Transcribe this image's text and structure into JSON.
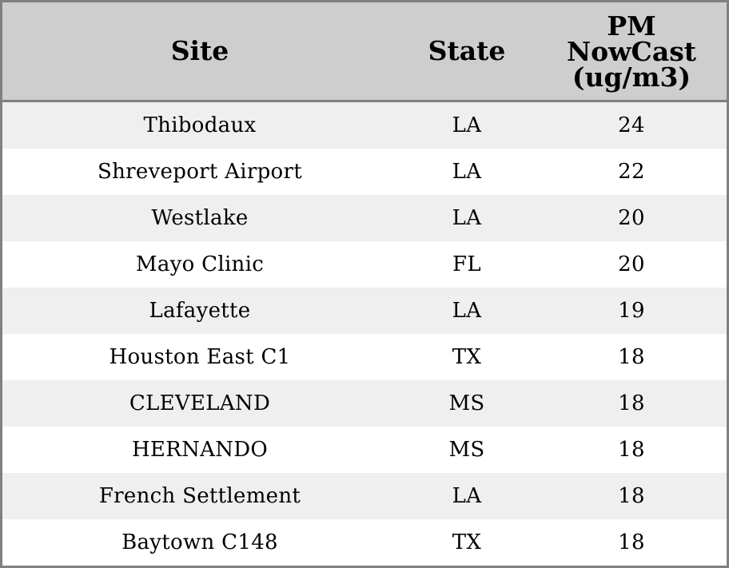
{
  "chart_data": {
    "type": "table",
    "columns": [
      "Site",
      "State",
      "PM\nNowCast\n(ug/m3)"
    ],
    "rows": [
      [
        "Thibodaux",
        "LA",
        "24"
      ],
      [
        "Shreveport Airport",
        "LA",
        "22"
      ],
      [
        "Westlake",
        "LA",
        "20"
      ],
      [
        "Mayo Clinic",
        "FL",
        "20"
      ],
      [
        "Lafayette",
        "LA",
        "19"
      ],
      [
        "Houston East C1",
        "TX",
        "18"
      ],
      [
        "CLEVELAND",
        "MS",
        "18"
      ],
      [
        "HERNANDO",
        "MS",
        "18"
      ],
      [
        "French Settlement",
        "LA",
        "18"
      ],
      [
        "Baytown C148",
        "TX",
        "18"
      ]
    ]
  },
  "colors": {
    "header_bg": "#cecece",
    "row_alt_bg": "#efefef",
    "row_bg": "#ffffff",
    "border": "#808080"
  }
}
